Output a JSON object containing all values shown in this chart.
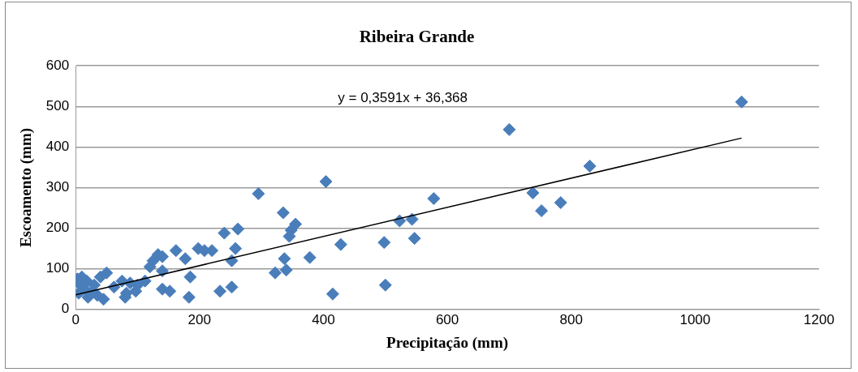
{
  "chart_data": {
    "type": "scatter",
    "title": "Ribeira Grande",
    "xlabel": "Precipitação (mm)",
    "ylabel": "Escoamento (mm)",
    "xlim": [
      0,
      1200
    ],
    "xticks": [
      0,
      200,
      400,
      600,
      800,
      1000,
      1200
    ],
    "ylim": [
      0,
      600
    ],
    "yticks": [
      0,
      100,
      200,
      300,
      400,
      500,
      600
    ],
    "grid": "y",
    "legend": false,
    "marker": "diamond",
    "series": [
      {
        "color": "#4a7ebb",
        "x": [
          1075,
          700,
          830,
          738,
          752,
          783,
          578,
          404,
          295,
          335,
          355,
          348,
          345,
          337,
          340,
          322,
          378,
          428,
          415,
          498,
          500,
          523,
          543,
          547,
          262,
          258,
          240,
          252,
          252,
          233,
          220,
          208,
          198,
          185,
          183,
          177,
          162,
          152,
          140,
          140,
          140,
          133,
          125,
          120,
          112,
          100,
          97,
          88,
          82,
          80,
          75,
          62,
          50,
          45,
          40,
          35,
          30,
          25,
          20,
          15,
          10,
          8,
          5,
          3,
          18
        ],
        "values": [
          511,
          443,
          353,
          287,
          243,
          263,
          273,
          315,
          285,
          238,
          210,
          195,
          180,
          125,
          97,
          90,
          128,
          160,
          38,
          165,
          60,
          218,
          222,
          175,
          198,
          150,
          188,
          120,
          55,
          45,
          145,
          145,
          150,
          80,
          30,
          125,
          145,
          45,
          130,
          95,
          50,
          135,
          120,
          105,
          70,
          60,
          45,
          65,
          40,
          30,
          70,
          55,
          90,
          25,
          80,
          35,
          60,
          40,
          30,
          50,
          80,
          60,
          40,
          75,
          70
        ]
      },
      {
        "type": "line",
        "marker": "none",
        "color": "#000000",
        "x": [
          0,
          1075
        ],
        "values": [
          36,
          422
        ]
      }
    ],
    "annotations": [
      "y = 0,3591x + 36,368"
    ]
  }
}
